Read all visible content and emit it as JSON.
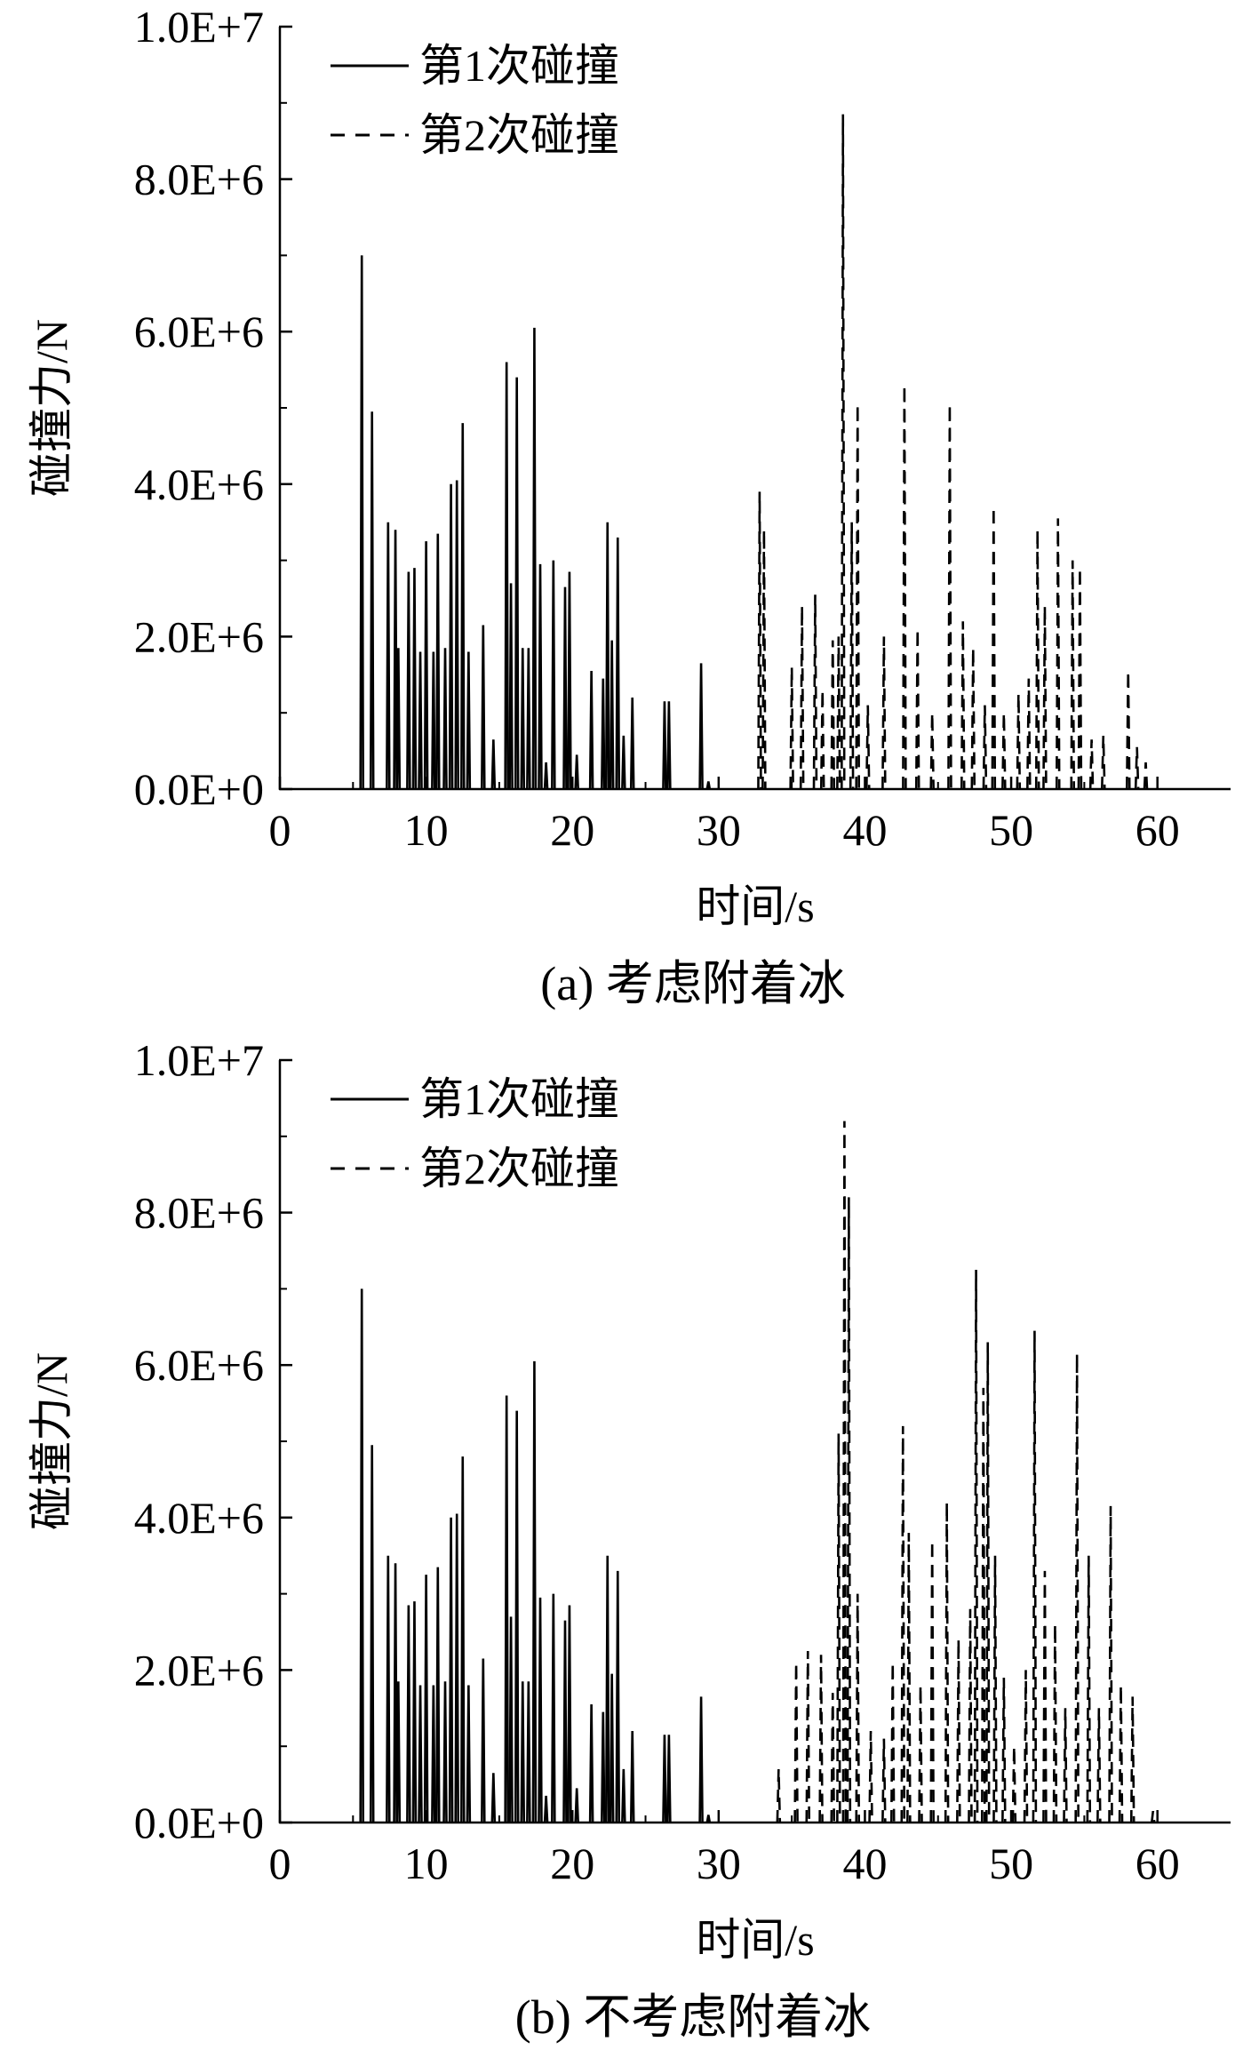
{
  "chart_data": [
    {
      "type": "line",
      "caption": "(a) 考虑附着冰",
      "xlabel": "时间/s",
      "ylabel": "碰撞力/N",
      "xlim": [
        0,
        65
      ],
      "ylim": [
        0,
        10000000
      ],
      "x_ticks": [
        "0",
        "10",
        "20",
        "30",
        "40",
        "50",
        "60"
      ],
      "y_ticks": [
        "0.0E+0",
        "2.0E+6",
        "4.0E+6",
        "6.0E+6",
        "8.0E+6",
        "1.0E+7"
      ],
      "legend_position": "top-left",
      "grid": false,
      "series": [
        {
          "name": "第1次碰撞",
          "style": "solid",
          "color": "#000000",
          "peaks": [
            [
              5.6,
              7000000
            ],
            [
              6.3,
              4950000
            ],
            [
              7.4,
              3500000
            ],
            [
              7.9,
              3400000
            ],
            [
              8.1,
              1850000
            ],
            [
              8.8,
              2850000
            ],
            [
              9.2,
              2900000
            ],
            [
              9.6,
              1800000
            ],
            [
              10.0,
              3250000
            ],
            [
              10.5,
              1800000
            ],
            [
              10.8,
              3350000
            ],
            [
              11.3,
              1850000
            ],
            [
              11.7,
              4000000
            ],
            [
              12.1,
              4050000
            ],
            [
              12.5,
              4800000
            ],
            [
              12.9,
              1800000
            ],
            [
              13.9,
              2150000
            ],
            [
              14.6,
              650000
            ],
            [
              15.5,
              5600000
            ],
            [
              15.8,
              2700000
            ],
            [
              16.2,
              5400000
            ],
            [
              16.6,
              1850000
            ],
            [
              17.0,
              1850000
            ],
            [
              17.4,
              6050000
            ],
            [
              17.8,
              2950000
            ],
            [
              18.2,
              350000
            ],
            [
              18.7,
              3000000
            ],
            [
              19.5,
              2650000
            ],
            [
              19.8,
              2850000
            ],
            [
              20.3,
              450000
            ],
            [
              21.3,
              1550000
            ],
            [
              22.1,
              1450000
            ],
            [
              22.4,
              3500000
            ],
            [
              22.7,
              1950000
            ],
            [
              23.1,
              3300000
            ],
            [
              23.5,
              700000
            ],
            [
              24.1,
              1200000
            ],
            [
              26.3,
              1150000
            ],
            [
              26.6,
              1150000
            ],
            [
              28.8,
              1650000
            ],
            [
              29.3,
              100000
            ]
          ]
        },
        {
          "name": "第2次碰撞",
          "style": "dashed",
          "color": "#000000",
          "peaks": [
            [
              32.8,
              3900000
            ],
            [
              33.1,
              3400000
            ],
            [
              35.0,
              1600000
            ],
            [
              35.7,
              2400000
            ],
            [
              36.6,
              2550000
            ],
            [
              37.1,
              1300000
            ],
            [
              37.8,
              1950000
            ],
            [
              38.2,
              2000000
            ],
            [
              38.5,
              8850000
            ],
            [
              39.1,
              3500000
            ],
            [
              39.5,
              5050000
            ],
            [
              40.2,
              1100000
            ],
            [
              41.3,
              2000000
            ],
            [
              42.7,
              5300000
            ],
            [
              43.6,
              2100000
            ],
            [
              44.6,
              1000000
            ],
            [
              45.8,
              5050000
            ],
            [
              46.7,
              2200000
            ],
            [
              47.4,
              1850000
            ],
            [
              48.2,
              1100000
            ],
            [
              48.8,
              3700000
            ],
            [
              49.5,
              1000000
            ],
            [
              50.5,
              1250000
            ],
            [
              51.2,
              1450000
            ],
            [
              51.8,
              3400000
            ],
            [
              52.3,
              2400000
            ],
            [
              53.2,
              3550000
            ],
            [
              54.2,
              3000000
            ],
            [
              54.7,
              2900000
            ],
            [
              55.5,
              650000
            ],
            [
              56.3,
              700000
            ],
            [
              58.0,
              1550000
            ],
            [
              58.6,
              550000
            ],
            [
              59.2,
              350000
            ]
          ]
        }
      ]
    },
    {
      "type": "line",
      "caption": "(b) 不考虑附着冰",
      "xlabel": "时间/s",
      "ylabel": "碰撞力/N",
      "xlim": [
        0,
        65
      ],
      "ylim": [
        0,
        10000000
      ],
      "x_ticks": [
        "0",
        "10",
        "20",
        "30",
        "40",
        "50",
        "60"
      ],
      "y_ticks": [
        "0.0E+0",
        "2.0E+6",
        "4.0E+6",
        "6.0E+6",
        "8.0E+6",
        "1.0E+7"
      ],
      "legend_position": "top-left",
      "grid": false,
      "series": [
        {
          "name": "第1次碰撞",
          "style": "solid",
          "color": "#000000",
          "peaks": [
            [
              5.6,
              7000000
            ],
            [
              6.3,
              4950000
            ],
            [
              7.4,
              3500000
            ],
            [
              7.9,
              3400000
            ],
            [
              8.1,
              1850000
            ],
            [
              8.8,
              2850000
            ],
            [
              9.2,
              2900000
            ],
            [
              9.6,
              1800000
            ],
            [
              10.0,
              3250000
            ],
            [
              10.5,
              1800000
            ],
            [
              10.8,
              3350000
            ],
            [
              11.3,
              1850000
            ],
            [
              11.7,
              4000000
            ],
            [
              12.1,
              4050000
            ],
            [
              12.5,
              4800000
            ],
            [
              12.9,
              1800000
            ],
            [
              13.9,
              2150000
            ],
            [
              14.6,
              650000
            ],
            [
              15.5,
              5600000
            ],
            [
              15.8,
              2700000
            ],
            [
              16.2,
              5400000
            ],
            [
              16.6,
              1850000
            ],
            [
              17.0,
              1850000
            ],
            [
              17.4,
              6050000
            ],
            [
              17.8,
              2950000
            ],
            [
              18.2,
              350000
            ],
            [
              18.7,
              3000000
            ],
            [
              19.5,
              2650000
            ],
            [
              19.8,
              2850000
            ],
            [
              20.3,
              450000
            ],
            [
              21.3,
              1550000
            ],
            [
              22.1,
              1450000
            ],
            [
              22.4,
              3500000
            ],
            [
              22.7,
              1950000
            ],
            [
              23.1,
              3300000
            ],
            [
              23.5,
              700000
            ],
            [
              24.1,
              1200000
            ],
            [
              26.3,
              1150000
            ],
            [
              26.6,
              1150000
            ],
            [
              28.8,
              1650000
            ],
            [
              29.3,
              100000
            ]
          ]
        },
        {
          "name": "第2次碰撞",
          "style": "dashed",
          "color": "#000000",
          "peaks": [
            [
              34.1,
              700000
            ],
            [
              35.3,
              2100000
            ],
            [
              36.1,
              2250000
            ],
            [
              37.0,
              2200000
            ],
            [
              37.8,
              1700000
            ],
            [
              38.2,
              5100000
            ],
            [
              38.6,
              9200000
            ],
            [
              38.9,
              8200000
            ],
            [
              39.5,
              3000000
            ],
            [
              40.4,
              1200000
            ],
            [
              41.3,
              1100000
            ],
            [
              41.9,
              2100000
            ],
            [
              42.6,
              5200000
            ],
            [
              43.0,
              3800000
            ],
            [
              43.8,
              1800000
            ],
            [
              44.6,
              3700000
            ],
            [
              45.6,
              4200000
            ],
            [
              46.4,
              2400000
            ],
            [
              47.2,
              2800000
            ],
            [
              47.6,
              7250000
            ],
            [
              48.1,
              5700000
            ],
            [
              48.4,
              6300000
            ],
            [
              48.9,
              3500000
            ],
            [
              49.5,
              1900000
            ],
            [
              50.2,
              1000000
            ],
            [
              51.0,
              2000000
            ],
            [
              51.6,
              6450000
            ],
            [
              52.3,
              3300000
            ],
            [
              53.0,
              2600000
            ],
            [
              53.7,
              1500000
            ],
            [
              54.5,
              6150000
            ],
            [
              55.3,
              3500000
            ],
            [
              56.0,
              1500000
            ],
            [
              56.8,
              4150000
            ],
            [
              57.5,
              1800000
            ],
            [
              58.3,
              1650000
            ],
            [
              59.7,
              150000
            ]
          ]
        }
      ]
    }
  ]
}
